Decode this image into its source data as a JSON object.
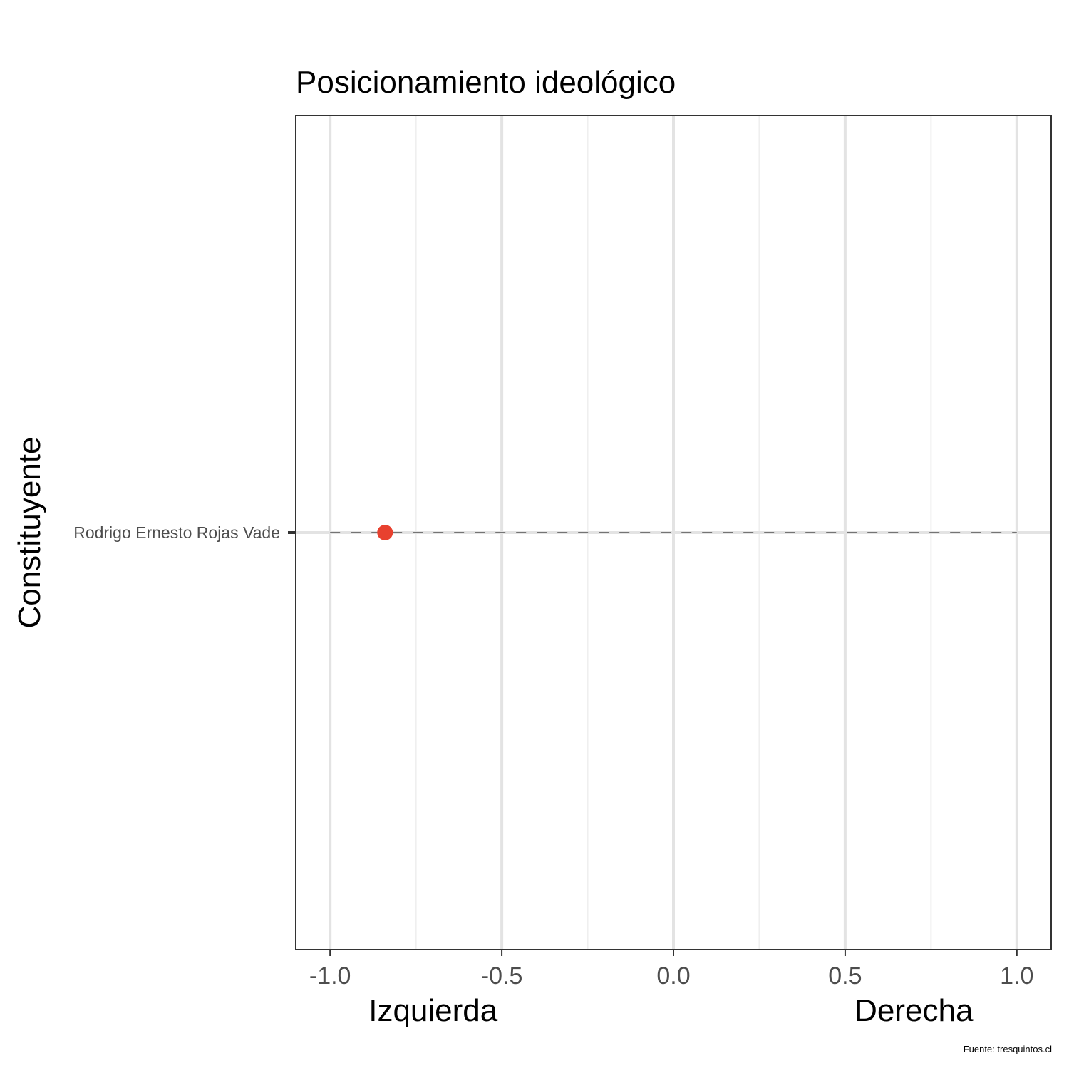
{
  "chart_data": {
    "type": "scatter",
    "title": "Posicionamiento ideológico",
    "xlabel": "",
    "ylabel": "Constituyente",
    "xlim": [
      -1.1,
      1.1
    ],
    "x_ticks": [
      -1.0,
      -0.5,
      0.0,
      0.5,
      1.0
    ],
    "x_tick_labels": [
      "-1.0",
      "-0.5",
      "0.0",
      "0.5",
      "1.0"
    ],
    "x_minor_ticks": [
      -0.75,
      -0.25,
      0.25,
      0.75
    ],
    "x_pole_labels": [
      {
        "text": "Izquierda",
        "x": -0.7
      },
      {
        "text": "Derecha",
        "x": 0.7
      }
    ],
    "categories": [
      "Rodrigo Ernesto Rojas Vade"
    ],
    "points": [
      {
        "category": "Rodrigo Ernesto Rojas Vade",
        "x": -0.84,
        "color": "#e8412f"
      }
    ],
    "reference_line": {
      "from": -1.0,
      "to": 1.0,
      "style": "dashed"
    },
    "grid": true,
    "legend": "none",
    "caption": "Fuente: tresquintos.cl"
  },
  "colors": {
    "point": "#e8412f",
    "grid_major": "#e3e3e3",
    "grid_minor": "#efefef",
    "panel_border": "#333333",
    "tick_text": "#4d4d4d",
    "text": "#000000"
  }
}
